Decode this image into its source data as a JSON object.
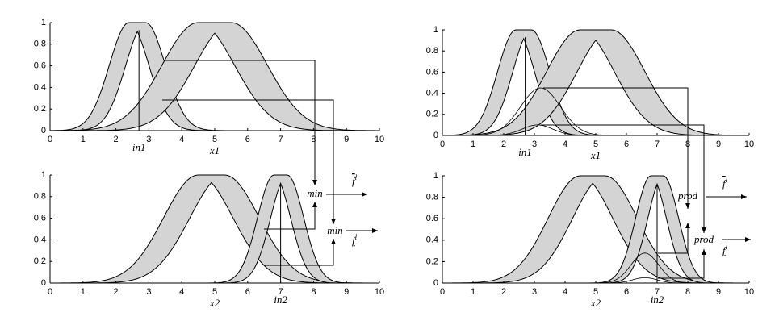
{
  "panels": [
    {
      "x_ticks": [
        "0",
        "1",
        "2",
        "3",
        "4",
        "5",
        "6",
        "7",
        "8",
        "9",
        "10"
      ],
      "y_ticks": [
        "0",
        "0.2",
        "0.4",
        "0.6",
        "0.8",
        "1"
      ],
      "input_label": "in1",
      "axis_label": "x1"
    },
    {
      "x_ticks": [
        "0",
        "1",
        "2",
        "3",
        "4",
        "5",
        "6",
        "7",
        "8",
        "9",
        "10"
      ],
      "y_ticks": [
        "0",
        "0.2",
        "0.4",
        "0.6",
        "0.8",
        "1"
      ],
      "input_label": "in2",
      "axis_label": "x2"
    },
    {
      "x_ticks": [
        "0",
        "1",
        "2",
        "3",
        "4",
        "5",
        "6",
        "7",
        "8",
        "9",
        "10"
      ],
      "y_ticks": [
        "0",
        "0.2",
        "0.4",
        "0.6",
        "0.8",
        "1"
      ],
      "input_label": "in1",
      "axis_label": "x1"
    },
    {
      "x_ticks": [
        "0",
        "1",
        "2",
        "3",
        "4",
        "5",
        "6",
        "7",
        "8",
        "9",
        "10"
      ],
      "y_ticks": [
        "0",
        "0.2",
        "0.4",
        "0.6",
        "0.8",
        "1"
      ],
      "input_label": "in2",
      "axis_label": "x2"
    }
  ],
  "operators": {
    "left": "min",
    "right": "prod"
  },
  "outputs": {
    "upper": {
      "symbol": "f",
      "superscript": "l"
    },
    "lower": {
      "symbol": "f",
      "superscript": "l"
    }
  }
}
